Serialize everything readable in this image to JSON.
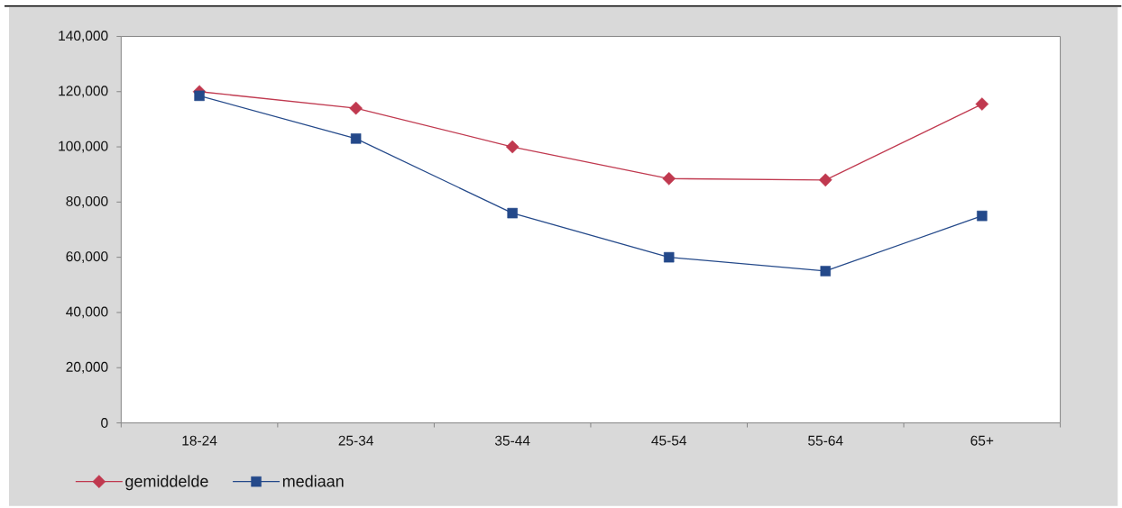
{
  "chart_data": {
    "type": "line",
    "categories": [
      "18-24",
      "25-34",
      "35-44",
      "45-54",
      "55-64",
      "65+"
    ],
    "series": [
      {
        "name": "gemiddelde",
        "color": "#c0394f",
        "marker": "diamond",
        "values": [
          120000,
          114000,
          100000,
          88500,
          88000,
          115500
        ]
      },
      {
        "name": "mediaan",
        "color": "#24498a",
        "marker": "square",
        "values": [
          118500,
          103000,
          76000,
          60000,
          55000,
          75000
        ]
      }
    ],
    "ylim": [
      0,
      140000
    ],
    "yticks": [
      0,
      {
        "value": 20000,
        "label": "20,000"
      },
      {
        "value": 40000,
        "label": "40,000"
      },
      {
        "value": 60000,
        "label": "60,000"
      },
      {
        "value": 80000,
        "label": "80,000"
      },
      {
        "value": 100000,
        "label": "100,000"
      },
      {
        "value": 120000,
        "label": "120,000"
      },
      {
        "value": 140000,
        "label": "140,000"
      }
    ],
    "legend": "bottom left"
  }
}
